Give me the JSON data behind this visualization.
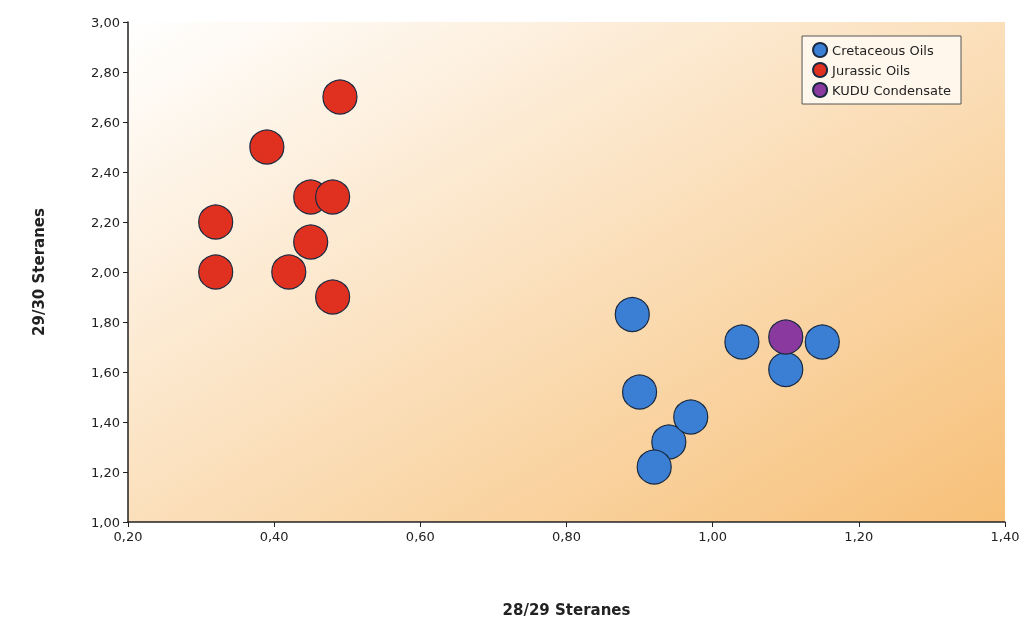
{
  "chart_data": {
    "type": "scatter",
    "xlabel": "28/29 Steranes",
    "ylabel": "29/30 Steranes",
    "xlim": [
      0.2,
      1.4
    ],
    "xticks": [
      {
        "value": 0.2,
        "label": "0,20"
      },
      {
        "value": 0.4,
        "label": "0,40"
      },
      {
        "value": 0.6,
        "label": "0,60"
      },
      {
        "value": 0.8,
        "label": "0,80"
      },
      {
        "value": 1.0,
        "label": "1,00"
      },
      {
        "value": 1.2,
        "label": "1,20"
      },
      {
        "value": 1.4,
        "label": "1,40"
      }
    ],
    "ylim": [
      1.0,
      3.0
    ],
    "yticks": [
      {
        "value": 1.0,
        "label": "1,00"
      },
      {
        "value": 1.2,
        "label": "1,20"
      },
      {
        "value": 1.4,
        "label": "1,40"
      },
      {
        "value": 1.6,
        "label": "1,60"
      },
      {
        "value": 1.8,
        "label": "1,80"
      },
      {
        "value": 2.0,
        "label": "2,00"
      },
      {
        "value": 2.2,
        "label": "2,20"
      },
      {
        "value": 2.4,
        "label": "2,40"
      },
      {
        "value": 2.6,
        "label": "2,60"
      },
      {
        "value": 2.8,
        "label": "2,80"
      },
      {
        "value": 3.0,
        "label": "3,00"
      }
    ],
    "grid": false,
    "legend": "top right",
    "marker": "circle",
    "series": [
      {
        "name": "Cretaceous Oils",
        "color": "#3b7fd4",
        "x": [
          0.89,
          0.9,
          0.94,
          0.97,
          0.92,
          1.04,
          1.1,
          1.15
        ],
        "values": [
          1.83,
          1.52,
          1.32,
          1.42,
          1.22,
          1.72,
          1.61,
          1.72
        ]
      },
      {
        "name": "Jurassic Oils",
        "color": "#e0301f",
        "x": [
          0.32,
          0.32,
          0.39,
          0.49,
          0.45,
          0.48,
          0.45,
          0.42,
          0.48
        ],
        "values": [
          2.2,
          2.0,
          2.5,
          2.7,
          2.3,
          2.3,
          2.12,
          2.0,
          1.9
        ]
      },
      {
        "name": "KUDU Condensate",
        "color": "#8a3a9e",
        "x": [
          1.1
        ],
        "values": [
          1.74
        ]
      }
    ]
  }
}
